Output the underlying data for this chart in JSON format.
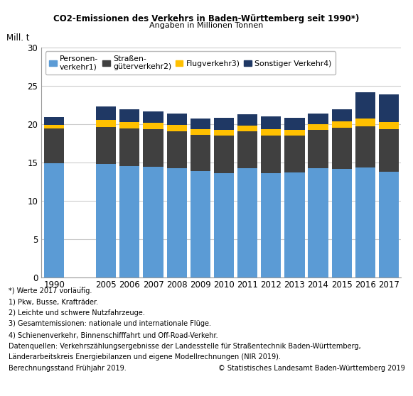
{
  "title": "CO2-Emissionen des Verkehrs in Baden-Württemberg seit 1990*)",
  "subtitle": "Angaben in Millionen Tonnen",
  "ylabel": "Mill. t",
  "years": [
    "1990",
    "...",
    "2005",
    "2006",
    "2007",
    "2008",
    "2009",
    "2010",
    "2011",
    "2012",
    "2013",
    "2014",
    "2015",
    "2016",
    "2017"
  ],
  "personenverkehr": [
    14.9,
    0,
    14.8,
    14.5,
    14.4,
    14.2,
    13.9,
    13.6,
    14.2,
    13.6,
    13.7,
    14.2,
    14.1,
    14.3,
    13.8
  ],
  "strassengueterverkehr": [
    4.5,
    0,
    4.8,
    4.9,
    4.9,
    4.9,
    4.7,
    4.9,
    4.9,
    4.9,
    4.8,
    5.0,
    5.4,
    5.4,
    5.5
  ],
  "flugverkehr": [
    0.5,
    0,
    0.9,
    0.9,
    0.9,
    0.8,
    0.7,
    0.7,
    0.7,
    0.8,
    0.7,
    0.8,
    0.9,
    1.0,
    1.0
  ],
  "sonstigerverkehr": [
    1.0,
    0,
    1.8,
    1.6,
    1.5,
    1.5,
    1.4,
    1.6,
    1.5,
    1.7,
    1.6,
    1.4,
    1.5,
    3.5,
    3.6
  ],
  "color_personen": "#5B9BD5",
  "color_strasse": "#404040",
  "color_flug": "#FFC000",
  "color_sonstig": "#1F3864",
  "legend_labels": [
    "Personen-\nverkehr1)",
    "Straßen-\ngüterverkehr2)",
    "Flugverkehr3)",
    "Sonstiger Verkehr4)"
  ],
  "footnotes": [
    "*) Werte 2017 vorläufig.",
    "1) Pkw, Busse, Krafträder.",
    "2) Leichte und schwere Nutzfahrzeuge.",
    "3) Gesamtemissionen: nationale und internationale Flüge.",
    "4) Schienenverkehr, Binnenschifffahrt und Off-Road-Verkehr.",
    "Datenquellen: Verkehrszählungsergebnisse der Landesstelle für Straßentechnik Baden-Württemberg,",
    "Länderarbeitskreis Energiebilanzen und eigene Modellrechnungen (NIR 2019).",
    "Berechnungsstand Frühjahr 2019."
  ],
  "copyright": "© Statistisches Landesamt Baden-Württemberg 2019",
  "ylim": [
    0,
    30
  ],
  "yticks": [
    0,
    5,
    10,
    15,
    20,
    25,
    30
  ],
  "background_color": "#ffffff",
  "plot_bg_color": "#ffffff"
}
